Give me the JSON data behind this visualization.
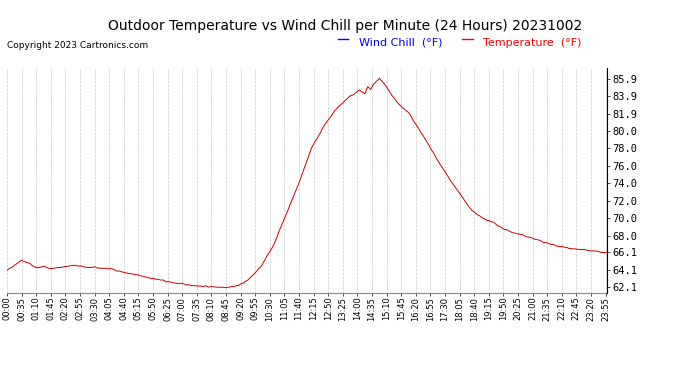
{
  "title": "Outdoor Temperature vs Wind Chill per Minute (24 Hours) 20231002",
  "copyright": "Copyright 2023 Cartronics.com",
  "legend_wind_chill": "Wind Chill  (°F)",
  "legend_temperature": "Temperature  (°F)",
  "line_color": "#cc0000",
  "background_color": "#ffffff",
  "grid_color": "#bbbbbb",
  "yticks": [
    62.1,
    64.1,
    66.1,
    68.0,
    70.0,
    72.0,
    74.0,
    76.0,
    78.0,
    80.0,
    81.9,
    83.9,
    85.9
  ],
  "ylim": [
    61.5,
    87.2
  ],
  "total_minutes": 1440,
  "xtick_interval_minutes": 35
}
